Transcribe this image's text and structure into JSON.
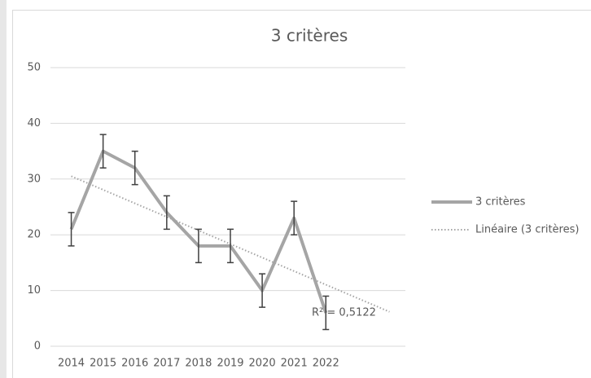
{
  "chart_data": {
    "type": "line",
    "title": "3 critères",
    "categories": [
      "2014",
      "2015",
      "2016",
      "2017",
      "2018",
      "2019",
      "2020",
      "2021",
      "2022"
    ],
    "series": [
      {
        "name": "3 critères",
        "color": "#a5a5a5",
        "values": [
          21,
          35,
          32,
          24,
          18,
          18,
          10,
          23,
          6
        ],
        "error": [
          3,
          3,
          3,
          3,
          3,
          3,
          3,
          3,
          3
        ]
      }
    ],
    "trendline": {
      "name": "Linéaire (3 critères)",
      "color": "#a5a5a5",
      "forward": 2,
      "label": "R² = 0,5122"
    },
    "ylim": [
      0,
      50
    ],
    "yticks": [
      0,
      10,
      20,
      30,
      40,
      50
    ],
    "grid": true,
    "legend": "right"
  }
}
